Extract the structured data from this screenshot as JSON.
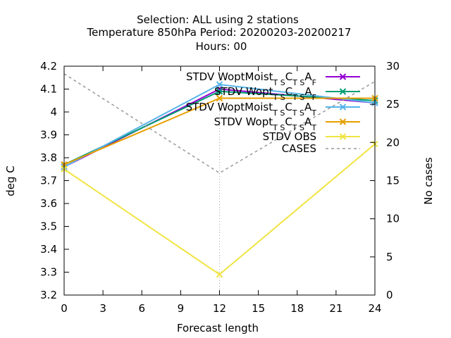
{
  "chart_data": {
    "type": "line",
    "title_lines": [
      "Selection: ALL using     2 stations",
      "Temperature 850hPa    Period: 20200203-20200217",
      "Hours:  00"
    ],
    "xlabel": "Forecast length",
    "ylabel": "deg C",
    "y2label": "No cases",
    "x": [
      0,
      12,
      24
    ],
    "xlim": [
      0,
      24
    ],
    "xticks": [
      0,
      3,
      6,
      9,
      12,
      15,
      18,
      21,
      24
    ],
    "ylim": [
      3.2,
      4.2
    ],
    "yticks": [
      3.2,
      3.3,
      3.4,
      3.5,
      3.6,
      3.7,
      3.8,
      3.9,
      4.0,
      4.1,
      4.2
    ],
    "ytick_labels": [
      "3.2",
      "3.3",
      "3.4",
      "3.5",
      "3.6",
      "3.7",
      "3.8",
      "3.9",
      "4",
      "4.1",
      "4.2"
    ],
    "y2lim": [
      0,
      30
    ],
    "y2ticks": [
      0,
      5,
      10,
      15,
      20,
      25,
      30
    ],
    "grid": "x=12 only (dotted)",
    "legend_position": "top-right",
    "series": [
      {
        "name_main": "STDV WoptMoist",
        "name_sub1": "T S",
        "name_mid": "C",
        "name_sub2": "T S",
        "name_end": "A",
        "name_sub3": "F",
        "color": "#9400d3",
        "marker": "x",
        "axis": "left",
        "values": [
          3.76,
          4.1,
          4.04
        ]
      },
      {
        "name_main": "STDV Wopt",
        "name_sub1": "T S",
        "name_mid": "C",
        "name_sub2": "T S",
        "name_end": "A",
        "name_sub3": "F",
        "color": "#009e73",
        "marker": "x",
        "axis": "left",
        "values": [
          3.77,
          4.09,
          4.05
        ]
      },
      {
        "name_main": "STDV WoptMoist",
        "name_sub1": "T S",
        "name_mid": "C",
        "name_sub2": "T S",
        "name_end": "A",
        "name_sub3": "T",
        "color": "#56b4e9",
        "marker": "x",
        "axis": "left",
        "values": [
          3.76,
          4.12,
          4.04
        ]
      },
      {
        "name_main": "STDV Wopt",
        "name_sub1": "T S",
        "name_mid": "C",
        "name_sub2": "T S",
        "name_end": "A",
        "name_sub3": "T",
        "color": "#e69f00",
        "marker": "x",
        "axis": "left",
        "values": [
          3.77,
          4.06,
          4.06
        ]
      },
      {
        "name_main": "STDV OBS",
        "color": "#f0e442",
        "marker": "x",
        "axis": "left",
        "values": [
          3.75,
          3.29,
          3.86
        ]
      },
      {
        "name_main": "CASES",
        "color": "#999999",
        "marker": "none",
        "dash": true,
        "axis": "right",
        "values": [
          29,
          16,
          28
        ]
      }
    ]
  }
}
